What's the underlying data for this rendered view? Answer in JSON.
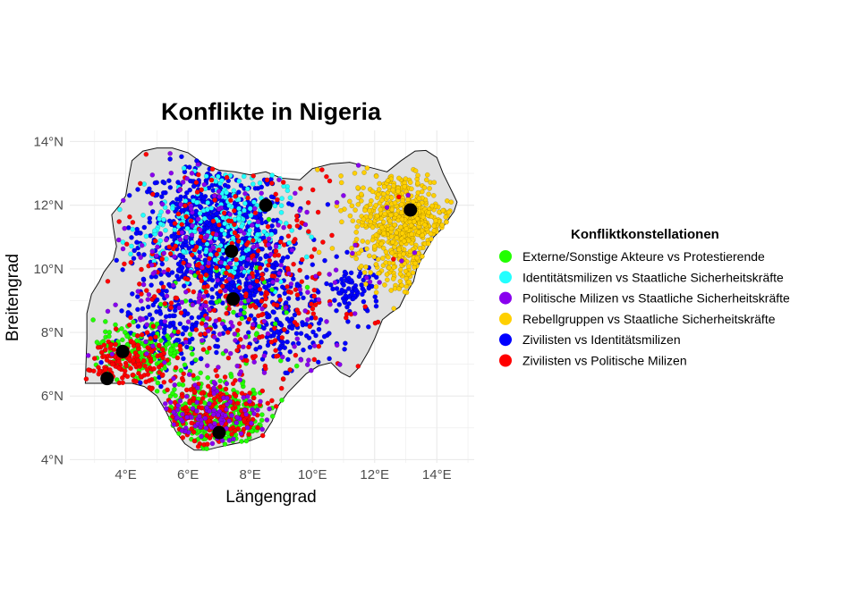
{
  "map": {
    "title": "Konflikte in Nigeria",
    "xlabel": "Längengrad",
    "ylabel": "Breitengrad",
    "xlim": [
      2.2,
      15.2
    ],
    "ylim": [
      3.9,
      14.35
    ],
    "x_ticks": [
      {
        "value": 4,
        "label": "4°E"
      },
      {
        "value": 6,
        "label": "6°E"
      },
      {
        "value": 8,
        "label": "8°E"
      },
      {
        "value": 10,
        "label": "10°E"
      },
      {
        "value": 12,
        "label": "12°E"
      },
      {
        "value": 14,
        "label": "14°E"
      }
    ],
    "y_ticks": [
      {
        "value": 4,
        "label": "4°N"
      },
      {
        "value": 6,
        "label": "6°N"
      },
      {
        "value": 8,
        "label": "8°N"
      },
      {
        "value": 10,
        "label": "10°N"
      },
      {
        "value": 12,
        "label": "12°N"
      },
      {
        "value": 14,
        "label": "14°N"
      }
    ],
    "country_fill": "#e0e0e0",
    "country_outline": [
      [
        2.7,
        6.4
      ],
      [
        2.72,
        7.0
      ],
      [
        2.75,
        7.8
      ],
      [
        2.75,
        8.6
      ],
      [
        2.9,
        9.2
      ],
      [
        3.15,
        9.6
      ],
      [
        3.3,
        9.9
      ],
      [
        3.6,
        10.3
      ],
      [
        3.7,
        10.7
      ],
      [
        3.6,
        11.3
      ],
      [
        3.55,
        11.7
      ],
      [
        3.8,
        12.0
      ],
      [
        4.0,
        12.3
      ],
      [
        4.1,
        12.9
      ],
      [
        4.2,
        13.4
      ],
      [
        4.55,
        13.7
      ],
      [
        5.0,
        13.8
      ],
      [
        5.5,
        13.8
      ],
      [
        6.0,
        13.65
      ],
      [
        6.5,
        13.3
      ],
      [
        7.0,
        13.1
      ],
      [
        7.5,
        13.05
      ],
      [
        8.0,
        12.95
      ],
      [
        8.5,
        13.05
      ],
      [
        9.0,
        12.85
      ],
      [
        9.6,
        12.8
      ],
      [
        10.0,
        13.15
      ],
      [
        10.6,
        13.3
      ],
      [
        11.2,
        13.35
      ],
      [
        12.0,
        13.15
      ],
      [
        12.4,
        13.05
      ],
      [
        12.85,
        13.4
      ],
      [
        13.3,
        13.7
      ],
      [
        13.65,
        13.72
      ],
      [
        14.0,
        13.5
      ],
      [
        14.2,
        13.0
      ],
      [
        14.5,
        12.4
      ],
      [
        14.65,
        12.1
      ],
      [
        14.55,
        11.8
      ],
      [
        14.15,
        11.25
      ],
      [
        13.9,
        11.0
      ],
      [
        13.6,
        10.5
      ],
      [
        13.35,
        10.0
      ],
      [
        13.25,
        9.6
      ],
      [
        13.0,
        9.2
      ],
      [
        12.8,
        8.8
      ],
      [
        12.5,
        8.6
      ],
      [
        12.25,
        8.4
      ],
      [
        12.0,
        7.8
      ],
      [
        11.8,
        7.4
      ],
      [
        11.5,
        6.9
      ],
      [
        11.2,
        6.6
      ],
      [
        10.9,
        6.75
      ],
      [
        10.6,
        7.05
      ],
      [
        10.2,
        6.95
      ],
      [
        9.8,
        6.7
      ],
      [
        9.5,
        6.4
      ],
      [
        9.2,
        6.1
      ],
      [
        8.9,
        5.7
      ],
      [
        8.7,
        5.2
      ],
      [
        8.4,
        4.75
      ],
      [
        8.0,
        4.6
      ],
      [
        7.5,
        4.5
      ],
      [
        7.0,
        4.4
      ],
      [
        6.6,
        4.3
      ],
      [
        6.2,
        4.3
      ],
      [
        5.9,
        4.5
      ],
      [
        5.6,
        4.9
      ],
      [
        5.3,
        5.5
      ],
      [
        5.0,
        6.0
      ],
      [
        4.6,
        6.3
      ],
      [
        4.2,
        6.4
      ],
      [
        3.7,
        6.4
      ],
      [
        3.2,
        6.4
      ],
      [
        2.7,
        6.4
      ]
    ],
    "legend": {
      "title": "Konfliktkonstellationen",
      "entries": [
        {
          "label": "Externe/Sonstige Akteure vs Protestierende",
          "color": "#22ff00"
        },
        {
          "label": "Identitätsmilizen vs Staatliche Sicherheitskräfte",
          "color": "#22ffff"
        },
        {
          "label": "Politische Milizen vs Staatliche Sicherheitskräfte",
          "color": "#8800ee"
        },
        {
          "label": "Rebellgruppen vs Staatliche Sicherheitskräfte",
          "color": "#ffd000"
        },
        {
          "label": "Zivilisten vs Identitätsmilizen",
          "color": "#0000ff"
        },
        {
          "label": "Zivilisten vs Politische Milizen",
          "color": "#ff0000"
        }
      ]
    },
    "cities": [
      {
        "lon": 3.4,
        "lat": 6.55
      },
      {
        "lon": 3.9,
        "lat": 7.4
      },
      {
        "lon": 7.0,
        "lat": 4.85
      },
      {
        "lon": 7.45,
        "lat": 9.05
      },
      {
        "lon": 7.4,
        "lat": 10.55
      },
      {
        "lon": 8.5,
        "lat": 12.0
      },
      {
        "lon": 13.15,
        "lat": 11.85
      }
    ],
    "clusters": [
      {
        "category": 4,
        "lon": 6.8,
        "lat": 11.2,
        "spread_lon": 2.6,
        "spread_lat": 2.3,
        "count": 700
      },
      {
        "category": 4,
        "lon": 7.8,
        "lat": 9.5,
        "spread_lon": 2.2,
        "spread_lat": 1.4,
        "count": 280
      },
      {
        "category": 4,
        "lon": 5.5,
        "lat": 8.0,
        "spread_lon": 1.8,
        "spread_lat": 1.2,
        "count": 140
      },
      {
        "category": 4,
        "lon": 9.2,
        "lat": 7.8,
        "spread_lon": 1.5,
        "spread_lat": 1.0,
        "count": 90
      },
      {
        "category": 4,
        "lon": 11.3,
        "lat": 9.3,
        "spread_lon": 1.0,
        "spread_lat": 1.0,
        "count": 90
      },
      {
        "category": 1,
        "lon": 7.3,
        "lat": 11.4,
        "spread_lon": 2.0,
        "spread_lat": 2.2,
        "count": 200
      },
      {
        "category": 1,
        "lon": 5.2,
        "lat": 11.0,
        "spread_lon": 1.2,
        "spread_lat": 1.2,
        "count": 50
      },
      {
        "category": 3,
        "lon": 12.9,
        "lat": 11.6,
        "spread_lon": 1.8,
        "spread_lat": 1.6,
        "count": 520
      },
      {
        "category": 3,
        "lon": 12.8,
        "lat": 10.0,
        "spread_lon": 1.2,
        "spread_lat": 1.2,
        "count": 80
      },
      {
        "category": 0,
        "lon": 6.8,
        "lat": 5.4,
        "spread_lon": 2.0,
        "spread_lat": 1.2,
        "count": 320
      },
      {
        "category": 0,
        "lon": 4.4,
        "lat": 7.4,
        "spread_lon": 1.6,
        "spread_lat": 1.0,
        "count": 150
      },
      {
        "category": 0,
        "lon": 7.5,
        "lat": 8.5,
        "spread_lon": 3.0,
        "spread_lat": 2.5,
        "count": 60
      },
      {
        "category": 5,
        "lon": 7.5,
        "lat": 9.5,
        "spread_lon": 5.0,
        "spread_lat": 4.5,
        "count": 320
      },
      {
        "category": 5,
        "lon": 6.8,
        "lat": 5.4,
        "spread_lon": 2.0,
        "spread_lat": 1.2,
        "count": 200
      },
      {
        "category": 5,
        "lon": 4.0,
        "lat": 7.0,
        "spread_lon": 1.4,
        "spread_lat": 1.0,
        "count": 140
      },
      {
        "category": 2,
        "lon": 7.5,
        "lat": 9.5,
        "spread_lon": 5.0,
        "spread_lat": 4.5,
        "count": 220
      },
      {
        "category": 2,
        "lon": 6.8,
        "lat": 5.4,
        "spread_lon": 2.0,
        "spread_lat": 1.2,
        "count": 90
      }
    ]
  }
}
